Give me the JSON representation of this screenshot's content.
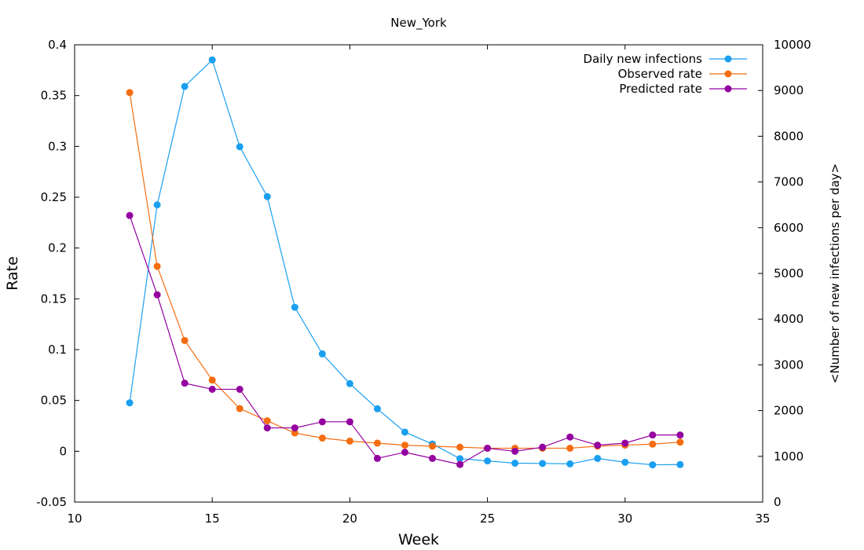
{
  "chart_data": {
    "type": "line",
    "title": "New_York",
    "xlabel": "Week",
    "ylabel": "Rate",
    "y2label": "<Number of new infections per day>",
    "xlim": [
      10,
      35
    ],
    "ylim": [
      -0.05,
      0.4
    ],
    "y2lim": [
      0,
      10000
    ],
    "xticks": [
      10,
      15,
      20,
      25,
      30,
      35
    ],
    "xtick_labels": [
      "10",
      "15",
      "20",
      "25",
      "30",
      "35"
    ],
    "yticks": [
      -0.05,
      0,
      0.05,
      0.1,
      0.15,
      0.2,
      0.25,
      0.3,
      0.35,
      0.4
    ],
    "ytick_labels": [
      "-0.05",
      "0",
      "0.05",
      "0.1",
      "0.15",
      "0.2",
      "0.25",
      "0.3",
      "0.35",
      "0.4"
    ],
    "y2ticks": [
      0,
      1000,
      2000,
      3000,
      4000,
      5000,
      6000,
      7000,
      8000,
      9000,
      10000
    ],
    "y2tick_labels": [
      "0",
      "1000",
      "2000",
      "3000",
      "4000",
      "5000",
      "6000",
      "7000",
      "8000",
      "9000",
      "10000"
    ],
    "grid": false,
    "legend_position": "top-right",
    "x": [
      12,
      13,
      14,
      15,
      16,
      17,
      18,
      19,
      20,
      21,
      22,
      23,
      24,
      25,
      26,
      27,
      28,
      29,
      30,
      31,
      32
    ],
    "series": [
      {
        "name": "Daily new infections",
        "axis": "y2",
        "color": "#1a9ff0",
        "values": [
          2170,
          6500,
          9090,
          9670,
          7770,
          6680,
          4260,
          3240,
          2590,
          2040,
          1530,
          1270,
          950,
          900,
          850,
          845,
          835,
          955,
          870,
          815,
          820
        ]
      },
      {
        "name": "Observed rate",
        "axis": "y",
        "color": "#f46d10",
        "values": [
          0.353,
          0.182,
          0.109,
          0.07,
          0.042,
          0.03,
          0.018,
          0.013,
          0.01,
          0.008,
          0.006,
          0.005,
          0.004,
          0.003,
          0.003,
          0.003,
          0.003,
          0.005,
          0.006,
          0.007,
          0.009
        ]
      },
      {
        "name": "Predicted rate",
        "axis": "y",
        "color": "#9400a0",
        "values": [
          0.232,
          0.154,
          0.067,
          0.061,
          0.061,
          0.023,
          0.023,
          0.029,
          0.029,
          -0.007,
          -0.001,
          -0.007,
          -0.013,
          0.003,
          0.0,
          0.004,
          0.014,
          0.006,
          0.008,
          0.016,
          0.016
        ]
      }
    ]
  }
}
